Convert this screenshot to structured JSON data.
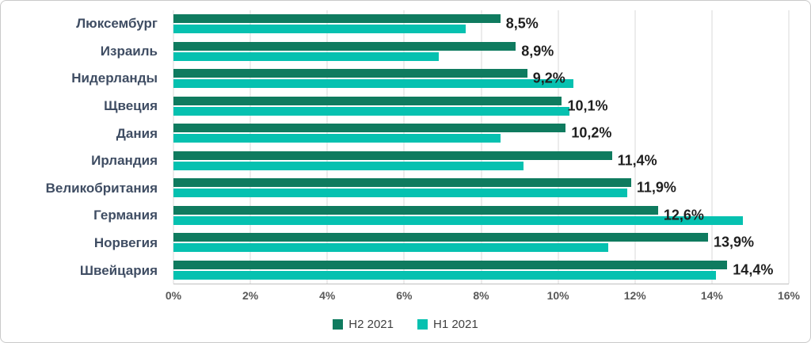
{
  "chart_data": {
    "type": "bar",
    "orientation": "horizontal",
    "title": "",
    "xlabel": "",
    "ylabel": "",
    "xlim": [
      0,
      16
    ],
    "x_ticks": [
      "0%",
      "2%",
      "4%",
      "6%",
      "8%",
      "10%",
      "12%",
      "14%",
      "16%"
    ],
    "grid": true,
    "legend_position": "bottom",
    "categories": [
      "Люксембург",
      "Израиль",
      "Нидерланды",
      "Щвеция",
      "Дания",
      "Ирландия",
      "Великобритания",
      "Германия",
      "Норвегия",
      "Швейцария"
    ],
    "series": [
      {
        "name": "H2 2021",
        "color": "#0f7b5f",
        "values": [
          8.5,
          8.9,
          9.2,
          10.1,
          10.2,
          11.4,
          11.9,
          12.6,
          13.9,
          14.4
        ],
        "labels": [
          "8,5%",
          "8,9%",
          "9,2%",
          "10,1%",
          "10,2%",
          "11,4%",
          "11,9%",
          "12,6%",
          "13,9%",
          "14,4%"
        ]
      },
      {
        "name": "H1 2021",
        "color": "#06c1b0",
        "values": [
          7.6,
          6.9,
          10.4,
          10.3,
          8.5,
          9.1,
          11.8,
          14.8,
          11.3,
          14.1
        ]
      }
    ],
    "colors": {
      "h2_2021": "#0f7b5f",
      "h1_2021": "#06c1b0"
    }
  }
}
